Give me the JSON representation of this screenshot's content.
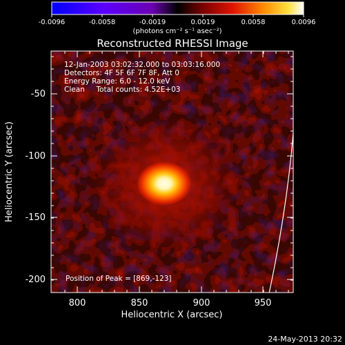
{
  "colorbar": {
    "tick_labels": [
      "-0.0096",
      "-0.0058",
      "-0.0019",
      "0.0019",
      "0.0058",
      "0.0096"
    ],
    "units_label": "(photons cm⁻² s⁻¹ asec⁻²)"
  },
  "title": "Reconstructed RHESSI Image",
  "info": {
    "time_range": "12-Jan-2003 03:02:32.000 to 03:03:16.000",
    "detectors": "Detectors: 4F 5F 6F 7F 8F, Att 0",
    "energy_range": "Energy Range: 6.0 - 12.0 keV",
    "clean_counts": "Clean     Total counts: 4.52E+03"
  },
  "peak_label": "Position of Peak = [869,-123]",
  "axes": {
    "x_label": "Heliocentric X (arcsec)",
    "y_label": "Heliocentric Y (arcsec)",
    "x_tick_labels": [
      "800",
      "850",
      "900",
      "950"
    ],
    "y_tick_labels": [
      "-50",
      "-100",
      "-150",
      "-200"
    ]
  },
  "timestamp": "24-May-2013 20:32",
  "peak": {
    "x": 869,
    "y": -123
  }
}
